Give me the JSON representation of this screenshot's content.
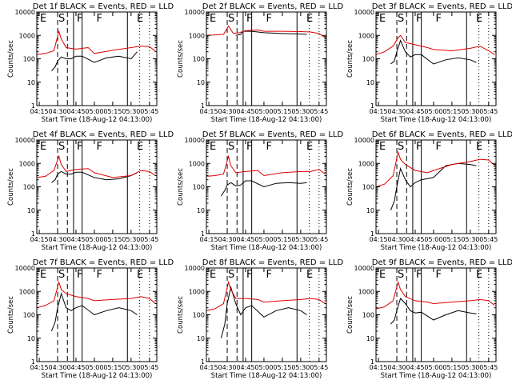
{
  "colors": {
    "events": "#000000",
    "lld": "#dd0000",
    "background": "#ffffff",
    "axes": "#000000"
  },
  "chart_data": {
    "type": "line",
    "layout": "3x3 grid of panels",
    "xlabel": "Start Time (18-Aug-12 04:13:00)",
    "ylabel": "Counts/sec",
    "x_tick_labels": [
      "04:15",
      "04:30",
      "04:45",
      "05:00",
      "05:15",
      "05:30",
      "05:45"
    ],
    "x_range_minutes": [
      0,
      98
    ],
    "y_scale": "log",
    "y_tick_labels": [
      "1",
      "10",
      "100",
      "1000",
      "10000"
    ],
    "ylim": [
      1,
      10000
    ],
    "grid": false,
    "markers": {
      "dashed_lines": [
        "04:30",
        "04:38"
      ],
      "solid_lines": [
        "04:43",
        "04:50",
        "05:27"
      ],
      "dotted_lines": [
        "05:37",
        "05:45"
      ],
      "letters": [
        {
          "label": "E",
          "time": "04:15"
        },
        {
          "label": "S",
          "time": "04:30"
        },
        {
          "label": "F",
          "time": "04:45"
        },
        {
          "label": "F",
          "time": "05:01"
        },
        {
          "label": "E",
          "time": "05:34"
        }
      ]
    },
    "panels": [
      {
        "title": "Det 1f BLACK = Events, RED = LLD",
        "series": [
          {
            "name": "Events",
            "color": "#000000",
            "x": [
              "04:25",
              "04:28",
              "04:30",
              "04:33",
              "04:37",
              "04:41",
              "04:45",
              "04:50",
              "05:00",
              "05:10",
              "05:20",
              "05:30",
              "05:35"
            ],
            "y": [
              30,
              45,
              80,
              120,
              100,
              100,
              130,
              130,
              70,
              110,
              130,
              100,
              200
            ]
          },
          {
            "name": "LLD",
            "color": "#dd0000",
            "x": [
              "04:13",
              "04:20",
              "04:27",
              "04:31",
              "04:33",
              "04:37",
              "04:45",
              "04:55",
              "05:00",
              "05:15",
              "05:30",
              "05:38",
              "05:45",
              "05:50"
            ],
            "y": [
              150,
              170,
              220,
              1500,
              700,
              300,
              260,
              300,
              170,
              230,
              300,
              350,
              330,
              210
            ]
          }
        ]
      },
      {
        "title": "Det 2f BLACK = Events, RED = LLD",
        "series": [
          {
            "name": "Events",
            "color": "#000000",
            "x": [
              "04:37",
              "04:41",
              "04:43",
              "04:50",
              "05:00",
              "05:15",
              "05:30",
              "05:35"
            ],
            "y": [
              1000,
              1100,
              1500,
              1500,
              1300,
              1200,
              1150,
              1100
            ]
          },
          {
            "name": "LLD",
            "color": "#dd0000",
            "x": [
              "04:13",
              "04:20",
              "04:27",
              "04:31",
              "04:35",
              "04:40",
              "04:45",
              "04:55",
              "05:00",
              "05:15",
              "05:30",
              "05:38",
              "05:45",
              "05:50"
            ],
            "y": [
              1000,
              1050,
              1100,
              2500,
              1200,
              1300,
              1600,
              1700,
              1500,
              1500,
              1450,
              1400,
              1200,
              800
            ]
          }
        ]
      },
      {
        "title": "Det 3f BLACK = Events, RED = LLD",
        "series": [
          {
            "name": "Events",
            "color": "#000000",
            "x": [
              "04:25",
              "04:28",
              "04:30",
              "04:33",
              "04:37",
              "04:41",
              "04:45",
              "04:50",
              "05:00",
              "05:10",
              "05:20",
              "05:30",
              "05:35"
            ],
            "y": [
              60,
              80,
              200,
              600,
              200,
              120,
              150,
              150,
              60,
              90,
              110,
              90,
              70
            ]
          },
          {
            "name": "LLD",
            "color": "#dd0000",
            "x": [
              "04:13",
              "04:20",
              "04:27",
              "04:31",
              "04:33",
              "04:37",
              "04:45",
              "04:55",
              "05:00",
              "05:15",
              "05:30",
              "05:38",
              "05:45",
              "05:50"
            ],
            "y": [
              150,
              200,
              350,
              800,
              1000,
              500,
              400,
              300,
              250,
              220,
              280,
              350,
              220,
              150
            ]
          }
        ]
      },
      {
        "title": "Det 4f BLACK = Events, RED = LLD",
        "series": [
          {
            "name": "Events",
            "color": "#000000",
            "x": [
              "04:25",
              "04:28",
              "04:30",
              "04:33",
              "04:37",
              "04:41",
              "04:45",
              "04:50",
              "05:00",
              "05:10",
              "05:20",
              "05:30",
              "05:35"
            ],
            "y": [
              150,
              200,
              350,
              450,
              350,
              350,
              420,
              420,
              250,
              200,
              220,
              300,
              400
            ]
          },
          {
            "name": "LLD",
            "color": "#dd0000",
            "x": [
              "04:13",
              "04:20",
              "04:27",
              "04:31",
              "04:33",
              "04:37",
              "04:45",
              "04:55",
              "05:00",
              "05:15",
              "05:30",
              "05:38",
              "05:45",
              "05:50"
            ],
            "y": [
              250,
              280,
              500,
              2000,
              900,
              450,
              550,
              600,
              400,
              250,
              300,
              500,
              450,
              300
            ]
          }
        ]
      },
      {
        "title": "Det 5f BLACK = Events, RED = LLD",
        "series": [
          {
            "name": "Events",
            "color": "#000000",
            "x": [
              "04:25",
              "04:28",
              "04:30",
              "04:33",
              "04:37",
              "04:41",
              "04:45",
              "04:50",
              "05:00",
              "05:10",
              "05:20",
              "05:30",
              "05:35"
            ],
            "y": [
              40,
              70,
              120,
              150,
              110,
              120,
              180,
              180,
              100,
              140,
              150,
              140,
              150
            ]
          },
          {
            "name": "LLD",
            "color": "#dd0000",
            "x": [
              "04:13",
              "04:20",
              "04:27",
              "04:31",
              "04:33",
              "04:37",
              "04:45",
              "04:55",
              "05:00",
              "05:15",
              "05:30",
              "05:38",
              "05:45",
              "05:50"
            ],
            "y": [
              280,
              300,
              350,
              2000,
              800,
              400,
              450,
              500,
              300,
              400,
              450,
              450,
              550,
              350
            ]
          }
        ]
      },
      {
        "title": "Det 6f BLACK = Events, RED = LLD",
        "series": [
          {
            "name": "Events",
            "color": "#000000",
            "x": [
              "04:25",
              "04:28",
              "04:30",
              "04:33",
              "04:37",
              "04:41",
              "04:45",
              "04:50",
              "05:00",
              "05:10",
              "05:20",
              "05:30",
              "05:35"
            ],
            "y": [
              10,
              25,
              100,
              600,
              200,
              100,
              150,
              200,
              250,
              800,
              1000,
              900,
              800
            ]
          },
          {
            "name": "LLD",
            "color": "#dd0000",
            "x": [
              "04:13",
              "04:20",
              "04:27",
              "04:31",
              "04:33",
              "04:37",
              "04:45",
              "04:55",
              "05:00",
              "05:15",
              "05:30",
              "05:38",
              "05:45",
              "05:50"
            ],
            "y": [
              100,
              130,
              300,
              3000,
              1500,
              900,
              500,
              400,
              500,
              900,
              1200,
              1500,
              1400,
              800
            ]
          }
        ]
      },
      {
        "title": "Det 7f BLACK = Events, RED = LLD",
        "series": [
          {
            "name": "Events",
            "color": "#000000",
            "x": [
              "04:25",
              "04:28",
              "04:30",
              "04:33",
              "04:37",
              "04:41",
              "04:45",
              "04:50",
              "05:00",
              "05:10",
              "05:20",
              "05:30",
              "05:35"
            ],
            "y": [
              20,
              50,
              200,
              800,
              200,
              150,
              200,
              250,
              100,
              150,
              200,
              150,
              100
            ]
          },
          {
            "name": "LLD",
            "color": "#dd0000",
            "x": [
              "04:13",
              "04:20",
              "04:27",
              "04:31",
              "04:33",
              "04:37",
              "04:45",
              "04:55",
              "05:00",
              "05:15",
              "05:30",
              "05:38",
              "05:45",
              "05:50"
            ],
            "y": [
              200,
              250,
              400,
              2500,
              1200,
              800,
              600,
              500,
              400,
              450,
              500,
              600,
              500,
              300
            ]
          }
        ]
      },
      {
        "title": "Det 8f BLACK = Events, RED = LLD",
        "series": [
          {
            "name": "Events",
            "color": "#000000",
            "x": [
              "04:25",
              "04:28",
              "04:30",
              "04:33",
              "04:37",
              "04:41",
              "04:45",
              "04:50",
              "05:00",
              "05:10",
              "05:20",
              "05:30",
              "05:35"
            ],
            "y": [
              10,
              40,
              300,
              1500,
              300,
              100,
              200,
              250,
              80,
              150,
              200,
              150,
              100
            ]
          },
          {
            "name": "LLD",
            "color": "#dd0000",
            "x": [
              "04:13",
              "04:20",
              "04:27",
              "04:31",
              "04:33",
              "04:37",
              "04:45",
              "04:55",
              "05:00",
              "05:15",
              "05:30",
              "05:38",
              "05:45",
              "05:50"
            ],
            "y": [
              150,
              180,
              300,
              2500,
              1200,
              500,
              500,
              450,
              350,
              400,
              450,
              500,
              450,
              300
            ]
          }
        ]
      },
      {
        "title": "Det 9f BLACK = Events, RED = LLD",
        "series": [
          {
            "name": "Events",
            "color": "#000000",
            "x": [
              "04:25",
              "04:28",
              "04:30",
              "04:33",
              "04:37",
              "04:41",
              "04:45",
              "04:50",
              "05:00",
              "05:10",
              "05:20",
              "05:30",
              "05:35"
            ],
            "y": [
              40,
              60,
              150,
              500,
              300,
              150,
              120,
              130,
              60,
              100,
              150,
              120,
              110
            ]
          },
          {
            "name": "LLD",
            "color": "#dd0000",
            "x": [
              "04:13",
              "04:20",
              "04:27",
              "04:31",
              "04:33",
              "04:37",
              "04:45",
              "04:55",
              "05:00",
              "05:15",
              "05:30",
              "05:38",
              "05:45",
              "05:50"
            ],
            "y": [
              180,
              220,
              400,
              2500,
              1200,
              600,
              400,
              350,
              300,
              350,
              400,
              450,
              400,
              250
            ]
          }
        ]
      }
    ]
  }
}
